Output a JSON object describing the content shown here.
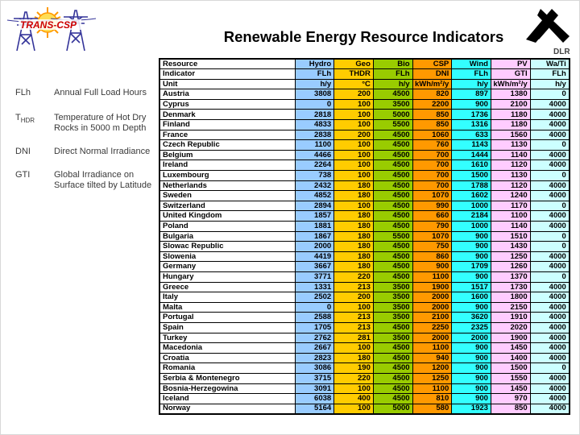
{
  "title": "Renewable Energy Resource Indicators",
  "logo_left": {
    "text": "TRANS-CSP"
  },
  "logo_right": {
    "text": "DLR"
  },
  "legend": [
    {
      "abbr": "FLh",
      "abbr_sub": "",
      "desc": "Annual Full Load Hours"
    },
    {
      "abbr": "T",
      "abbr_sub": "HDR",
      "desc": "Temperature of Hot Dry Rocks in 5000 m Depth"
    },
    {
      "abbr": "DNI",
      "abbr_sub": "",
      "desc": "Direct Normal Irradiance"
    },
    {
      "abbr": "GTI",
      "abbr_sub": "",
      "desc": "Global Irradiance on Surface tilted by Latitude"
    }
  ],
  "chart_data": {
    "type": "table",
    "title": "Renewable Energy Resource Indicators",
    "column_groups": [
      "Hydro",
      "Geo",
      "Bio",
      "CSP",
      "Wind",
      "PV",
      "Wa/Ti"
    ],
    "indicators": [
      "FLh",
      "THDR",
      "FLh",
      "DNI",
      "FLh",
      "GTI",
      "FLh"
    ],
    "units": [
      "h/y",
      "°C",
      "h/y",
      "kWh/m²/y",
      "h/y",
      "kWh/m²/y",
      "h/y"
    ]
  },
  "table": {
    "header_rows": [
      {
        "label": "Resource",
        "values": [
          "Hydro",
          "Geo",
          "Bio",
          "CSP",
          "Wind",
          "PV",
          "Wa/Ti"
        ]
      },
      {
        "label": "Indicator",
        "values": [
          "FLh",
          "THDR",
          "FLh",
          "DNI",
          "FLh",
          "GTI",
          "FLh"
        ]
      },
      {
        "label": "Unit",
        "values": [
          "h/y",
          "°C",
          "h/y",
          "kWh/m²/y",
          "h/y",
          "kWh/m²/y",
          "h/y"
        ]
      }
    ],
    "column_colors": [
      "#99CCFF",
      "#FFCC00",
      "#99CC00",
      "#FF9900",
      "#33FFFF",
      "#FFCCFF",
      "#CCFFFF"
    ],
    "rows": [
      {
        "country": "Austria",
        "values": [
          3808,
          200,
          4500,
          820,
          897,
          1380,
          0
        ]
      },
      {
        "country": "Cyprus",
        "values": [
          0,
          100,
          3500,
          2200,
          900,
          2100,
          4000
        ]
      },
      {
        "country": "Denmark",
        "values": [
          2818,
          100,
          5000,
          850,
          1736,
          1180,
          4000
        ]
      },
      {
        "country": "Finland",
        "values": [
          4833,
          100,
          5500,
          850,
          1316,
          1180,
          4000
        ]
      },
      {
        "country": "France",
        "values": [
          2838,
          200,
          4500,
          1060,
          633,
          1560,
          4000
        ]
      },
      {
        "country": "Czech Republic",
        "values": [
          1100,
          100,
          4500,
          760,
          1143,
          1130,
          0
        ]
      },
      {
        "country": "Belgium",
        "values": [
          4466,
          100,
          4500,
          700,
          1444,
          1140,
          4000
        ]
      },
      {
        "country": "Ireland",
        "values": [
          2264,
          100,
          4500,
          700,
          1610,
          1120,
          4000
        ]
      },
      {
        "country": "Luxembourg",
        "values": [
          738,
          100,
          4500,
          700,
          1500,
          1130,
          0
        ]
      },
      {
        "country": "Netherlands",
        "values": [
          2432,
          180,
          4500,
          700,
          1788,
          1120,
          4000
        ]
      },
      {
        "country": "Sweden",
        "values": [
          4852,
          180,
          4500,
          1070,
          1602,
          1240,
          4000
        ]
      },
      {
        "country": "Switzerland",
        "values": [
          2894,
          100,
          4500,
          990,
          1000,
          1170,
          0
        ]
      },
      {
        "country": "United Kingdom",
        "values": [
          1857,
          180,
          4500,
          660,
          2184,
          1100,
          4000
        ]
      },
      {
        "country": "Poland",
        "values": [
          1881,
          180,
          4500,
          790,
          1000,
          1140,
          4000
        ]
      },
      {
        "country": "Bulgaria",
        "values": [
          1867,
          180,
          5500,
          1070,
          900,
          1510,
          0
        ]
      },
      {
        "country": "Slowac Republic",
        "values": [
          2000,
          180,
          4500,
          750,
          900,
          1430,
          0
        ]
      },
      {
        "country": "Slowenia",
        "values": [
          4419,
          180,
          4500,
          860,
          900,
          1250,
          4000
        ]
      },
      {
        "country": "Germany",
        "values": [
          3667,
          180,
          4500,
          900,
          1709,
          1260,
          4000
        ]
      },
      {
        "country": "Hungary",
        "values": [
          3771,
          220,
          4500,
          1100,
          900,
          1370,
          0
        ]
      },
      {
        "country": "Greece",
        "values": [
          1331,
          213,
          3500,
          1900,
          1517,
          1730,
          4000
        ]
      },
      {
        "country": "Italy",
        "values": [
          2502,
          200,
          3500,
          2000,
          1600,
          1800,
          4000
        ]
      },
      {
        "country": "Malta",
        "values": [
          0,
          100,
          3500,
          2000,
          900,
          2150,
          4000
        ]
      },
      {
        "country": "Portugal",
        "values": [
          2588,
          213,
          3500,
          2100,
          3620,
          1910,
          4000
        ]
      },
      {
        "country": "Spain",
        "values": [
          1705,
          213,
          4500,
          2250,
          2325,
          2020,
          4000
        ]
      },
      {
        "country": "Turkey",
        "values": [
          2762,
          281,
          3500,
          2000,
          2000,
          1900,
          4000
        ]
      },
      {
        "country": "Macedonia",
        "values": [
          2667,
          100,
          4500,
          1100,
          900,
          1450,
          4000
        ]
      },
      {
        "country": "Croatia",
        "values": [
          2823,
          180,
          4500,
          940,
          900,
          1400,
          4000
        ]
      },
      {
        "country": "Romania",
        "values": [
          3086,
          190,
          4500,
          1200,
          900,
          1500,
          0
        ]
      },
      {
        "country": "Serbia & Montenegro",
        "values": [
          3715,
          220,
          4500,
          1250,
          900,
          1550,
          4000
        ]
      },
      {
        "country": "Bosnia-Herzegowina",
        "values": [
          3091,
          100,
          4500,
          1100,
          900,
          1450,
          4000
        ]
      },
      {
        "country": "Iceland",
        "values": [
          6038,
          400,
          4500,
          810,
          900,
          970,
          4000
        ]
      },
      {
        "country": "Norway",
        "values": [
          5164,
          100,
          5000,
          580,
          1923,
          850,
          4000
        ]
      }
    ]
  }
}
